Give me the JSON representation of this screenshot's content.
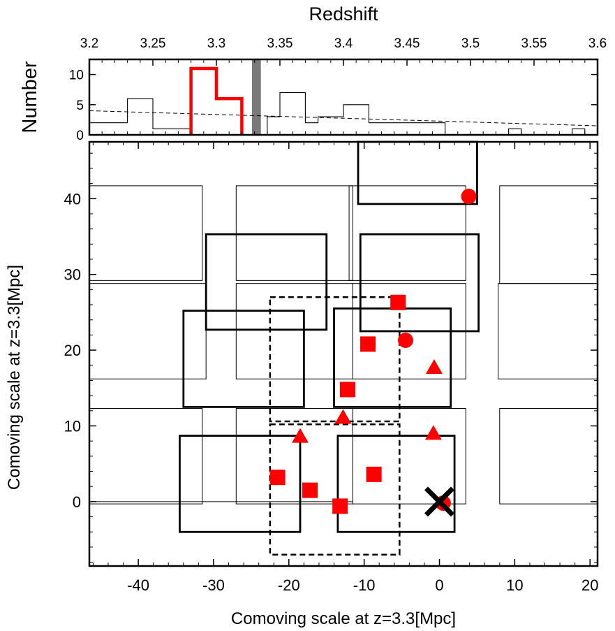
{
  "chart_data": [
    {
      "type": "histogram",
      "xlabel": "Redshift",
      "ylabel": "Number",
      "xlim": [
        3.2,
        3.6
      ],
      "ylim": [
        0,
        12.5
      ],
      "x_ticks": [
        3.2,
        3.25,
        3.3,
        3.35,
        3.4,
        3.45,
        3.5,
        3.55,
        3.6
      ],
      "x_tick_labels": [
        "3.2",
        "3.25",
        "3.3",
        "3.35",
        "3.4",
        "3.45",
        "3.5",
        "3.55",
        "3.6"
      ],
      "y_ticks": [
        0,
        5,
        10
      ],
      "y_tick_labels": [
        "0",
        "5",
        "10"
      ],
      "bin_edges": [
        3.2,
        3.21,
        3.22,
        3.23,
        3.24,
        3.25,
        3.26,
        3.27,
        3.28,
        3.29,
        3.3,
        3.31,
        3.32,
        3.33,
        3.34,
        3.35,
        3.36,
        3.37,
        3.38,
        3.39,
        3.4,
        3.41,
        3.42,
        3.43,
        3.44,
        3.45,
        3.46,
        3.47,
        3.48,
        3.49,
        3.5,
        3.51,
        3.52,
        3.53,
        3.54,
        3.55,
        3.56,
        3.57,
        3.58,
        3.59,
        3.6
      ],
      "series": [
        {
          "kind": "all",
          "color": "#000000",
          "counts": [
            2,
            2,
            2,
            6,
            6,
            1,
            1,
            1,
            0,
            0,
            0,
            0,
            0,
            0,
            3,
            7,
            7,
            2,
            3,
            3,
            5,
            5,
            2,
            2,
            2,
            2,
            2,
            2,
            0,
            0,
            0,
            0,
            0,
            1,
            0,
            0,
            0,
            0,
            1,
            0
          ]
        },
        {
          "kind": "selected",
          "color": "#ff0000",
          "counts": [
            0,
            0,
            0,
            0,
            0,
            0,
            0,
            0,
            11,
            11,
            6,
            6,
            0,
            0,
            0,
            0,
            0,
            0,
            0,
            0,
            0,
            0,
            0,
            0,
            0,
            0,
            0,
            0,
            0,
            0,
            0,
            0,
            0,
            0,
            0,
            0,
            0,
            0,
            0,
            0
          ]
        }
      ],
      "shaded_band": {
        "x": [
          3.328,
          3.335
        ],
        "color": "#7a7a7a"
      },
      "expected_curve": {
        "style": "dashed",
        "x": [
          3.2,
          3.6
        ],
        "y": [
          4.0,
          1.5
        ]
      }
    },
    {
      "type": "scatter",
      "xlabel": "Comoving scale at z=3.3[Mpc]",
      "ylabel": "Comoving scale at z=3.3[Mpc]",
      "xlim": [
        -46.5,
        21
      ],
      "ylim": [
        -8.5,
        47.5
      ],
      "x_ticks": [
        -40,
        -30,
        -20,
        -10,
        0,
        10,
        20
      ],
      "x_tick_labels": [
        "-40",
        "-30",
        "-20",
        "-10",
        "0",
        "10",
        "20"
      ],
      "y_ticks": [
        0,
        10,
        20,
        30,
        40
      ],
      "y_tick_labels": [
        "0",
        "10",
        "20",
        "30",
        "40"
      ],
      "thin_fields": [
        {
          "x": [
            -46.5,
            -31.5
          ],
          "y": [
            -0.3,
            12.3
          ]
        },
        {
          "x": [
            -46.5,
            -31
          ],
          "y": [
            16.2,
            28.8
          ]
        },
        {
          "x": [
            -46.5,
            -31.5
          ],
          "y": [
            29.2,
            41.7
          ]
        },
        {
          "x": [
            -27,
            -11.5
          ],
          "y": [
            -0.3,
            12.3
          ]
        },
        {
          "x": [
            -27,
            -11.5
          ],
          "y": [
            16.2,
            28.8
          ]
        },
        {
          "x": [
            -27,
            -11.5
          ],
          "y": [
            29.2,
            41.7
          ]
        },
        {
          "x": [
            -11.5,
            3.5
          ],
          "y": [
            -0.3,
            12.3
          ]
        },
        {
          "x": [
            -11.5,
            3.5
          ],
          "y": [
            16.2,
            28.8
          ]
        },
        {
          "x": [
            -12,
            3.5
          ],
          "y": [
            29.2,
            41.7
          ]
        },
        {
          "x": [
            8,
            21
          ],
          "y": [
            -0.3,
            12.3
          ]
        },
        {
          "x": [
            7.8,
            21
          ],
          "y": [
            16.2,
            28.8
          ]
        },
        {
          "x": [
            8,
            21
          ],
          "y": [
            28.8,
            41.7
          ]
        }
      ],
      "thick_fields": [
        {
          "x": [
            -34.5,
            -18.5
          ],
          "y": [
            -4,
            8.7
          ]
        },
        {
          "x": [
            -13.5,
            2
          ],
          "y": [
            -4,
            8.7
          ]
        },
        {
          "x": [
            -34,
            -18
          ],
          "y": [
            12.5,
            25.2
          ]
        },
        {
          "x": [
            -14,
            1.5
          ],
          "y": [
            12.5,
            25.5
          ]
        },
        {
          "x": [
            -31,
            -15
          ],
          "y": [
            22.7,
            35.3
          ]
        },
        {
          "x": [
            -10.5,
            5.2
          ],
          "y": [
            22.5,
            35.3
          ]
        },
        {
          "x": [
            -10.8,
            5
          ],
          "y": [
            39.3,
            47.5
          ]
        }
      ],
      "dashed_fields": [
        {
          "x": [
            -22.5,
            -5.3
          ],
          "y": [
            -7,
            10.2
          ]
        },
        {
          "x": [
            -22.5,
            -5.3
          ],
          "y": [
            10.6,
            27
          ]
        }
      ],
      "points": [
        {
          "shape": "circle",
          "x": 3.9,
          "y": 40.3
        },
        {
          "shape": "square",
          "x": -5.5,
          "y": 26.3
        },
        {
          "shape": "circle",
          "x": -4.5,
          "y": 21.3
        },
        {
          "shape": "square",
          "x": -9.5,
          "y": 20.8
        },
        {
          "shape": "triangle",
          "x": -0.7,
          "y": 17.7
        },
        {
          "shape": "square",
          "x": -12.2,
          "y": 14.8
        },
        {
          "shape": "triangle",
          "x": -12.8,
          "y": 11.1
        },
        {
          "shape": "triangle",
          "x": -18.5,
          "y": 8.6
        },
        {
          "shape": "triangle",
          "x": -0.8,
          "y": 9.0
        },
        {
          "shape": "square",
          "x": -21.5,
          "y": 3.2
        },
        {
          "shape": "square",
          "x": -17.2,
          "y": 1.5
        },
        {
          "shape": "square",
          "x": -8.7,
          "y": 3.6
        },
        {
          "shape": "square",
          "x": -13.2,
          "y": -0.6
        },
        {
          "shape": "circle",
          "x": 0.5,
          "y": -0.2
        }
      ],
      "point_color": "#ff0000",
      "cross_marker": {
        "x": 0,
        "y": 0,
        "color": "#000000"
      }
    }
  ]
}
